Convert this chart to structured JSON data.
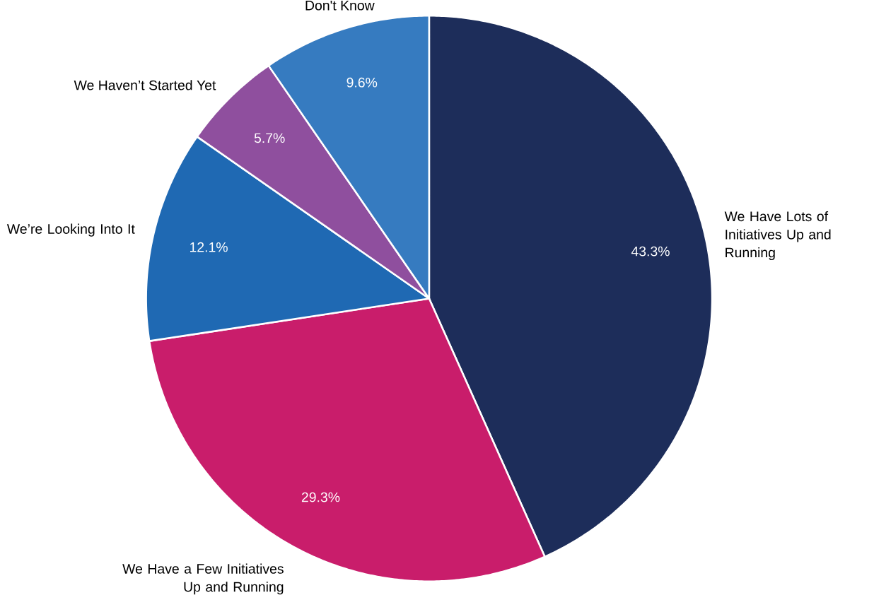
{
  "chart_data": {
    "type": "pie",
    "categories": [
      "We Have Lots of Initiatives Up and Running",
      "We Have a Few Initiatives Up and Running",
      "We’re Looking Into It",
      "We Haven’t Started Yet",
      "Don't Know"
    ],
    "values": [
      43.3,
      29.3,
      12.1,
      5.7,
      9.6
    ],
    "colors": [
      "#1d2d5a",
      "#c91d6b",
      "#1f69b3",
      "#8f4f9e",
      "#367bc0"
    ],
    "value_labels": [
      "43.3%",
      "29.3%",
      "12.1%",
      "5.7%",
      "9.6%"
    ]
  }
}
